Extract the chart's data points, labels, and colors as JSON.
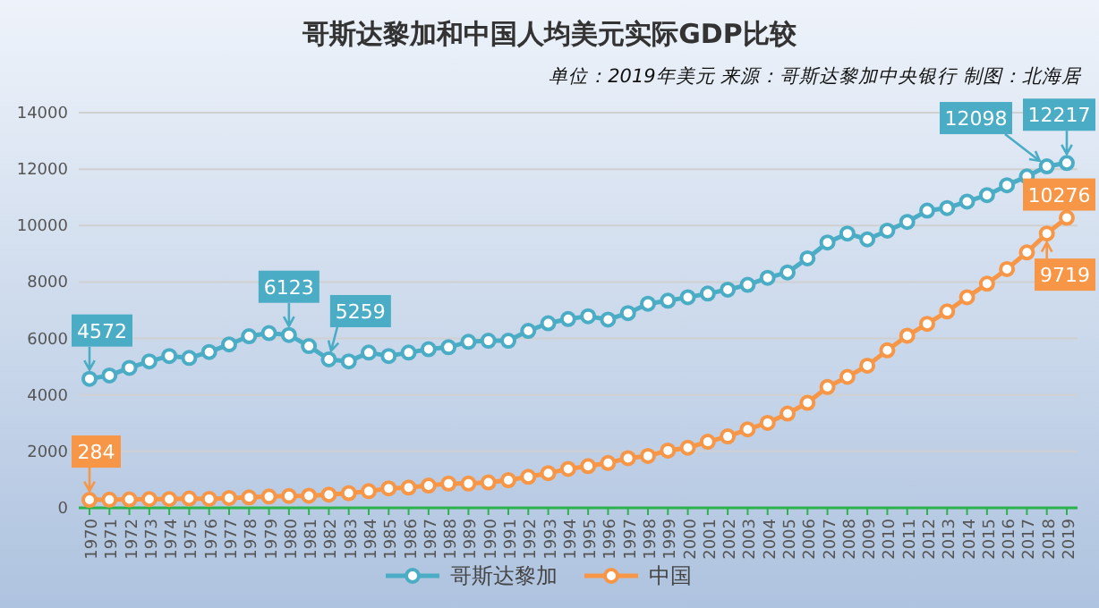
{
  "chart_data": {
    "type": "line",
    "title": "哥斯达黎加和中国人均美元实际GDP比较",
    "subtitle": "单位：2019年美元 来源：哥斯达黎加中央银行 制图：北海居",
    "categories": [
      "1970",
      "1971",
      "1972",
      "1973",
      "1974",
      "1975",
      "1976",
      "1977",
      "1978",
      "1979",
      "1980",
      "1981",
      "1982",
      "1983",
      "1984",
      "1985",
      "1986",
      "1987",
      "1988",
      "1989",
      "1990",
      "1991",
      "1992",
      "1993",
      "1994",
      "1995",
      "1996",
      "1997",
      "1998",
      "1999",
      "2000",
      "2001",
      "2002",
      "2003",
      "2004",
      "2005",
      "2006",
      "2007",
      "2008",
      "2009",
      "2010",
      "2011",
      "2012",
      "2013",
      "2014",
      "2015",
      "2016",
      "2017",
      "2018",
      "2019"
    ],
    "series": [
      {
        "name": "哥斯达黎加",
        "color": "#4bacc6",
        "values": [
          4572,
          4690,
          4960,
          5190,
          5380,
          5310,
          5520,
          5790,
          6080,
          6190,
          6123,
          5730,
          5259,
          5190,
          5500,
          5380,
          5500,
          5620,
          5690,
          5880,
          5920,
          5920,
          6270,
          6540,
          6690,
          6790,
          6670,
          6900,
          7230,
          7340,
          7460,
          7590,
          7730,
          7900,
          8150,
          8340,
          8840,
          9400,
          9720,
          9510,
          9820,
          10130,
          10530,
          10620,
          10850,
          11080,
          11430,
          11740,
          12098,
          12217
        ]
      },
      {
        "name": "中国",
        "color": "#f79646",
        "values": [
          284,
          290,
          300,
          310,
          310,
          330,
          320,
          350,
          370,
          400,
          420,
          430,
          470,
          520,
          590,
          690,
          720,
          790,
          860,
          860,
          900,
          980,
          1100,
          1230,
          1380,
          1480,
          1590,
          1760,
          1840,
          2030,
          2130,
          2340,
          2530,
          2780,
          3010,
          3340,
          3720,
          4280,
          4640,
          5040,
          5580,
          6100,
          6520,
          6960,
          7460,
          7940,
          8460,
          9050,
          9719,
          10276
        ]
      }
    ],
    "annotations": [
      {
        "text": "4572",
        "x": "1970",
        "y": 4572
      },
      {
        "text": "6123",
        "x": "1980",
        "y": 6123
      },
      {
        "text": "5259",
        "x": "1982",
        "y": 5259
      },
      {
        "text": "12217",
        "x": "2019",
        "y": 12217
      },
      {
        "text": "12098",
        "x": "2018",
        "y": 12098
      },
      {
        "text": "284",
        "x": "1970",
        "y": 284
      },
      {
        "text": "10276",
        "x": "2019",
        "y": 10276
      },
      {
        "text": "9719",
        "x": "2018",
        "y": 9719
      }
    ],
    "ylim": [
      0,
      14000
    ],
    "yticks": [
      0,
      2000,
      4000,
      6000,
      8000,
      10000,
      12000,
      14000
    ],
    "grid": "y",
    "legend": "bottom",
    "marker": "circle",
    "line_style": "solid"
  }
}
